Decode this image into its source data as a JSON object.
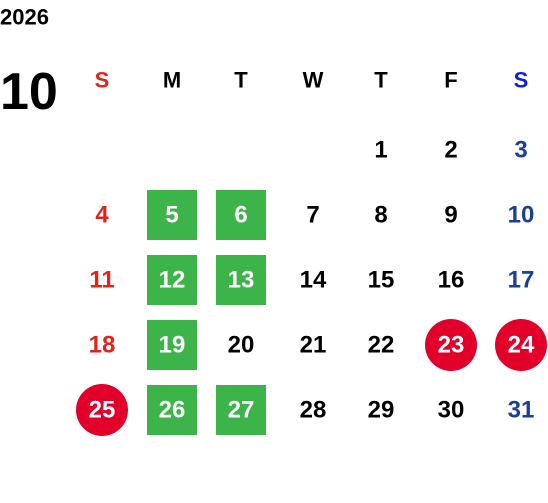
{
  "calendar": {
    "year": "2026",
    "month": "10",
    "weekdays": [
      "S",
      "M",
      "T",
      "W",
      "T",
      "F",
      "S"
    ],
    "weeks": [
      [
        null,
        null,
        null,
        null,
        {
          "day": "1"
        },
        {
          "day": "2"
        },
        {
          "day": "3"
        }
      ],
      [
        {
          "day": "4"
        },
        {
          "day": "5",
          "mark": "square"
        },
        {
          "day": "6",
          "mark": "square"
        },
        {
          "day": "7"
        },
        {
          "day": "8"
        },
        {
          "day": "9"
        },
        {
          "day": "10"
        }
      ],
      [
        {
          "day": "11"
        },
        {
          "day": "12",
          "mark": "square"
        },
        {
          "day": "13",
          "mark": "square"
        },
        {
          "day": "14"
        },
        {
          "day": "15"
        },
        {
          "day": "16"
        },
        {
          "day": "17"
        }
      ],
      [
        {
          "day": "18"
        },
        {
          "day": "19",
          "mark": "square"
        },
        {
          "day": "20"
        },
        {
          "day": "21"
        },
        {
          "day": "22"
        },
        {
          "day": "23",
          "mark": "circle"
        },
        {
          "day": "24",
          "mark": "circle"
        }
      ],
      [
        {
          "day": "25",
          "mark": "circle"
        },
        {
          "day": "26",
          "mark": "square"
        },
        {
          "day": "27",
          "mark": "square"
        },
        {
          "day": "28"
        },
        {
          "day": "29"
        },
        {
          "day": "30"
        },
        {
          "day": "31"
        }
      ]
    ],
    "colors": {
      "sunday": "#e2231a",
      "saturday": "#1a3f9a",
      "saturday_header": "#0a1fe6",
      "weekday": "#000000",
      "square": "#3cb44a",
      "circle": "#e2002a",
      "marked_text": "#ffffff"
    }
  }
}
